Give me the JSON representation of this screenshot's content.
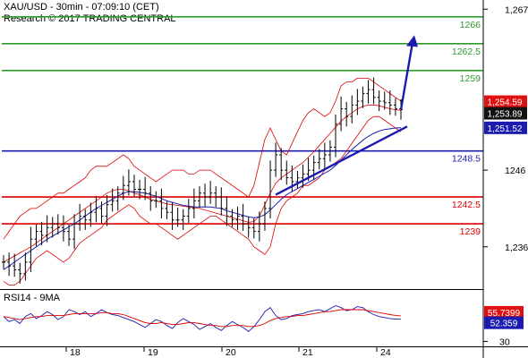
{
  "header": {
    "line1": "XAU/USD - 30min - 07:09:10 (CET)",
    "line2": "Research © 2017 TRADING CENTRAL"
  },
  "rsi_title": "RSI14 - 9MA",
  "chart_data": [
    {
      "type": "line",
      "name": "price",
      "y_axis_ticks": [
        1267,
        1246,
        1236
      ],
      "y_tick_labels": [
        "1,267",
        "1246",
        "1,236"
      ],
      "ylim": [
        1230.6,
        1268.2
      ],
      "x_labels": [
        "18",
        "19",
        "20",
        "21",
        "24"
      ],
      "levels": [
        {
          "value": 1266,
          "label": "1266",
          "color": "#2e9a2e"
        },
        {
          "value": 1262.5,
          "label": "1262.5",
          "color": "#2e9a2e"
        },
        {
          "value": 1259,
          "label": "1259",
          "color": "#2e9a2e"
        },
        {
          "value": 1248.5,
          "label": "1248.5",
          "color": "#1b1bb0"
        },
        {
          "value": 1242.5,
          "label": "1242.5",
          "color": "#dd0000"
        },
        {
          "value": 1239,
          "label": "1239",
          "color": "#dd0000"
        }
      ],
      "price_tags": [
        {
          "value": 1254.59,
          "label": "1,254.59",
          "bg": "#e01010",
          "fg": "#ffffff"
        },
        {
          "value": 1253.89,
          "label": "1,253.89",
          "bg": "#111111",
          "fg": "#ffffff"
        },
        {
          "value": 1251.52,
          "label": "1,251.52",
          "bg": "#1b1bb0",
          "fg": "#ffffff"
        }
      ],
      "close": [
        1234,
        1233.5,
        1233,
        1232.5,
        1234,
        1237,
        1238,
        1237.5,
        1238.5,
        1239,
        1238.5,
        1238,
        1237,
        1239,
        1240,
        1239.5,
        1240.5,
        1241,
        1240,
        1241.5,
        1242,
        1243,
        1244,
        1244.5,
        1243.5,
        1243.5,
        1243,
        1242,
        1242,
        1241,
        1240.5,
        1239.5,
        1239.5,
        1240,
        1241,
        1242,
        1243,
        1242.5,
        1243,
        1242.5,
        1241,
        1240,
        1239.5,
        1240,
        1239,
        1238.5,
        1238,
        1239,
        1241,
        1246,
        1248,
        1246,
        1245,
        1244.5,
        1245,
        1245.5,
        1246,
        1247,
        1247.5,
        1248,
        1249,
        1252,
        1254,
        1253,
        1254.5,
        1255,
        1256,
        1256.5,
        1255.5,
        1255,
        1254.8,
        1254.5,
        1254,
        1253.9
      ],
      "ma_blue": [
        1233,
        1233.5,
        1234,
        1234.5,
        1235,
        1235.5,
        1236,
        1236.5,
        1237,
        1237.4,
        1237.8,
        1238.2,
        1238.6,
        1239,
        1239.5,
        1240,
        1240.5,
        1241,
        1241.4,
        1241.8,
        1242.2,
        1242.6,
        1243,
        1243.2,
        1243.2,
        1243.1,
        1243,
        1242.8,
        1242.6,
        1242.3,
        1242,
        1241.8,
        1241.6,
        1241.4,
        1241.3,
        1241.2,
        1241.2,
        1241.2,
        1241.2,
        1241.1,
        1241,
        1240.7,
        1240.5,
        1240.3,
        1240.1,
        1239.9,
        1239.8,
        1239.9,
        1240.2,
        1240.8,
        1241.5,
        1242.2,
        1242.8,
        1243.2,
        1243.6,
        1244,
        1244.4,
        1244.8,
        1245.2,
        1245.6,
        1246,
        1246.6,
        1247.3,
        1248,
        1248.7,
        1249.3,
        1249.9,
        1250.4,
        1250.8,
        1251.1,
        1251.3,
        1251.4,
        1251.5,
        1251.52
      ],
      "bb_upper": [
        1237,
        1238,
        1239,
        1240,
        1240.5,
        1241,
        1241,
        1241.5,
        1242,
        1242.5,
        1243,
        1243,
        1243.5,
        1244,
        1244.5,
        1245,
        1246,
        1246.5,
        1246.5,
        1246.5,
        1247,
        1247.5,
        1248,
        1247.5,
        1246.5,
        1246,
        1245.5,
        1245,
        1244.5,
        1245,
        1245.5,
        1246,
        1246,
        1246,
        1245.5,
        1245.5,
        1246,
        1246,
        1246,
        1245.5,
        1245,
        1244.5,
        1244,
        1243.5,
        1243,
        1242.5,
        1244,
        1247,
        1250,
        1251.5,
        1250,
        1248.5,
        1248,
        1249.5,
        1251,
        1252.5,
        1253.5,
        1254,
        1253.5,
        1253,
        1253.5,
        1255,
        1257,
        1257.5,
        1257.5,
        1258,
        1258,
        1258,
        1257.5,
        1257,
        1256.5,
        1256,
        1255.5,
        1255
      ],
      "bb_lower": [
        1231.5,
        1231,
        1231,
        1231.5,
        1232.5,
        1233.5,
        1234.5,
        1235,
        1235.5,
        1235,
        1234.5,
        1234,
        1234.5,
        1235.5,
        1236.5,
        1237,
        1237.5,
        1238,
        1238.5,
        1239.5,
        1240,
        1240.5,
        1241,
        1241.5,
        1241,
        1240,
        1239.5,
        1239,
        1239,
        1238.5,
        1238,
        1237.5,
        1237,
        1237.5,
        1238,
        1238.5,
        1239,
        1239.5,
        1240,
        1240,
        1239.5,
        1239,
        1238.5,
        1238,
        1237.5,
        1237,
        1236,
        1235.5,
        1235,
        1236,
        1239,
        1241,
        1242,
        1242.5,
        1243,
        1244,
        1244,
        1244.5,
        1245,
        1246,
        1246.5,
        1247,
        1247.5,
        1248.5,
        1249.5,
        1250.5,
        1251.5,
        1252.5,
        1253,
        1253,
        1252.5,
        1252,
        1251.5,
        1251
      ],
      "bb_mid": [
        1234,
        1234.4,
        1234.8,
        1235.2,
        1235.6,
        1236,
        1236.5,
        1237,
        1237.5,
        1238,
        1238.5,
        1239,
        1239.5,
        1240,
        1240.5,
        1241,
        1241.5,
        1242,
        1242.5,
        1243,
        1243.3,
        1243.5,
        1243.5,
        1243.3,
        1243,
        1242.8,
        1242.5,
        1242.2,
        1242,
        1241.8,
        1241.6,
        1241.5,
        1241.4,
        1241.3,
        1241.2,
        1241.1,
        1241,
        1240.8,
        1240.6,
        1240.4,
        1240.2,
        1240,
        1239.8,
        1239.6,
        1239.4,
        1239.2,
        1239.3,
        1240,
        1241.5,
        1243,
        1244.3,
        1245,
        1245.5,
        1246,
        1246.5,
        1247,
        1247.7,
        1248.4,
        1249.2,
        1250,
        1250.8,
        1251.6,
        1252.4,
        1253,
        1253.5,
        1254,
        1254.3,
        1254.5,
        1254.5,
        1254.4,
        1254.2,
        1254,
        1253.9,
        1253.8
      ]
    },
    {
      "type": "line",
      "name": "rsi",
      "y_axis_ticks": [
        30
      ],
      "y_tick_labels": [
        "30"
      ],
      "ylim": [
        25,
        80
      ],
      "value_tags": [
        {
          "value": 55.7399,
          "label": "55.7399",
          "bg": "#e01010",
          "fg": "#ffffff"
        },
        {
          "value": 52.359,
          "label": "52.359",
          "bg": "#1b1bb0",
          "fg": "#ffffff"
        }
      ],
      "rsi": [
        55,
        50,
        52,
        48,
        55,
        58,
        53,
        56,
        60,
        57,
        52,
        55,
        62,
        60,
        57,
        60,
        55,
        58,
        62,
        59,
        57,
        56,
        54,
        52,
        50,
        47,
        44,
        48,
        52,
        50,
        46,
        43,
        49,
        53,
        50,
        47,
        42,
        45,
        48,
        44,
        41,
        46,
        50,
        47,
        44,
        40,
        45,
        52,
        60,
        64,
        56,
        52,
        53,
        56,
        57,
        58,
        60,
        61,
        62,
        60,
        63,
        66,
        64,
        61,
        62,
        65,
        64,
        60,
        57,
        55,
        54,
        53,
        52.5,
        52.359
      ],
      "ma": [
        55,
        54,
        53,
        52,
        53,
        54,
        55,
        55,
        56,
        56,
        56,
        56,
        57,
        58,
        58,
        58,
        58,
        58,
        59,
        59,
        58,
        58,
        57,
        55,
        53,
        51,
        49,
        48,
        48,
        49,
        48,
        47,
        47,
        48,
        49,
        49,
        48,
        47,
        46,
        46,
        45,
        45,
        46,
        46,
        46,
        45,
        45,
        46,
        48,
        51,
        53,
        54,
        55,
        55,
        56,
        56,
        57,
        58,
        59,
        60,
        60,
        61,
        62,
        62,
        62,
        62,
        62,
        61,
        60,
        59,
        58,
        57,
        56.2,
        55.7399
      ]
    }
  ]
}
